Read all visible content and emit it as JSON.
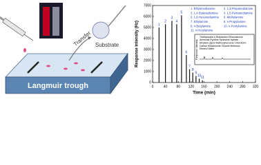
{
  "diagram": {
    "transfer": "Transfer",
    "substrate": "Substrate",
    "trough": "Langmuir trough"
  },
  "chart_data": {
    "type": "bar",
    "x_label": "Time (min)",
    "y_label": "Response intensity (Hz)",
    "categories": [
      "1",
      "2",
      "3",
      "4",
      "5",
      "6",
      "7",
      "8",
      "9",
      "10",
      "11"
    ],
    "x": [
      20,
      40,
      60,
      75,
      90,
      105,
      115,
      125,
      135,
      145,
      155
    ],
    "values": [
      5000,
      5300,
      5600,
      5300,
      6100,
      2500,
      1200,
      900,
      600,
      350,
      200
    ],
    "color": "#111111",
    "xlim": [
      0,
      320
    ],
    "xticks": [
      0,
      40,
      80,
      120,
      160,
      200,
      240,
      280,
      320
    ],
    "ylim": [
      0,
      7000
    ],
    "yticks": [
      0,
      1000,
      2000,
      3000,
      4000,
      5000,
      6000,
      7000
    ],
    "legend_entries": [
      "1. Ethylenediamine",
      "2. 1,3-Propanediamine",
      "3. 1,4-Butanediamine",
      "4. 1,5-Pentanediamine",
      "5. 1,6-Hexanediamine",
      "6. Methylamine",
      "7. Ethylamine",
      "8. n-Propylamine",
      "9. n-Butylamine",
      "10. n-Pentylamine",
      "11. n-Hexylamine"
    ],
    "legend_color": "#1f3fbf",
    "inset": {
      "y_label": "Response intensity",
      "lines": [
        "Triethylamine  n-Butylamine  Ethanolamine",
        "Ammonia   Pyridine   Hydrazine hydrate",
        "Ethylene glycol  Methoxybenzene  Chloroform",
        "Carbon tetrachloride   Toluene   Methanol",
        "Ethanol   Water"
      ]
    }
  }
}
